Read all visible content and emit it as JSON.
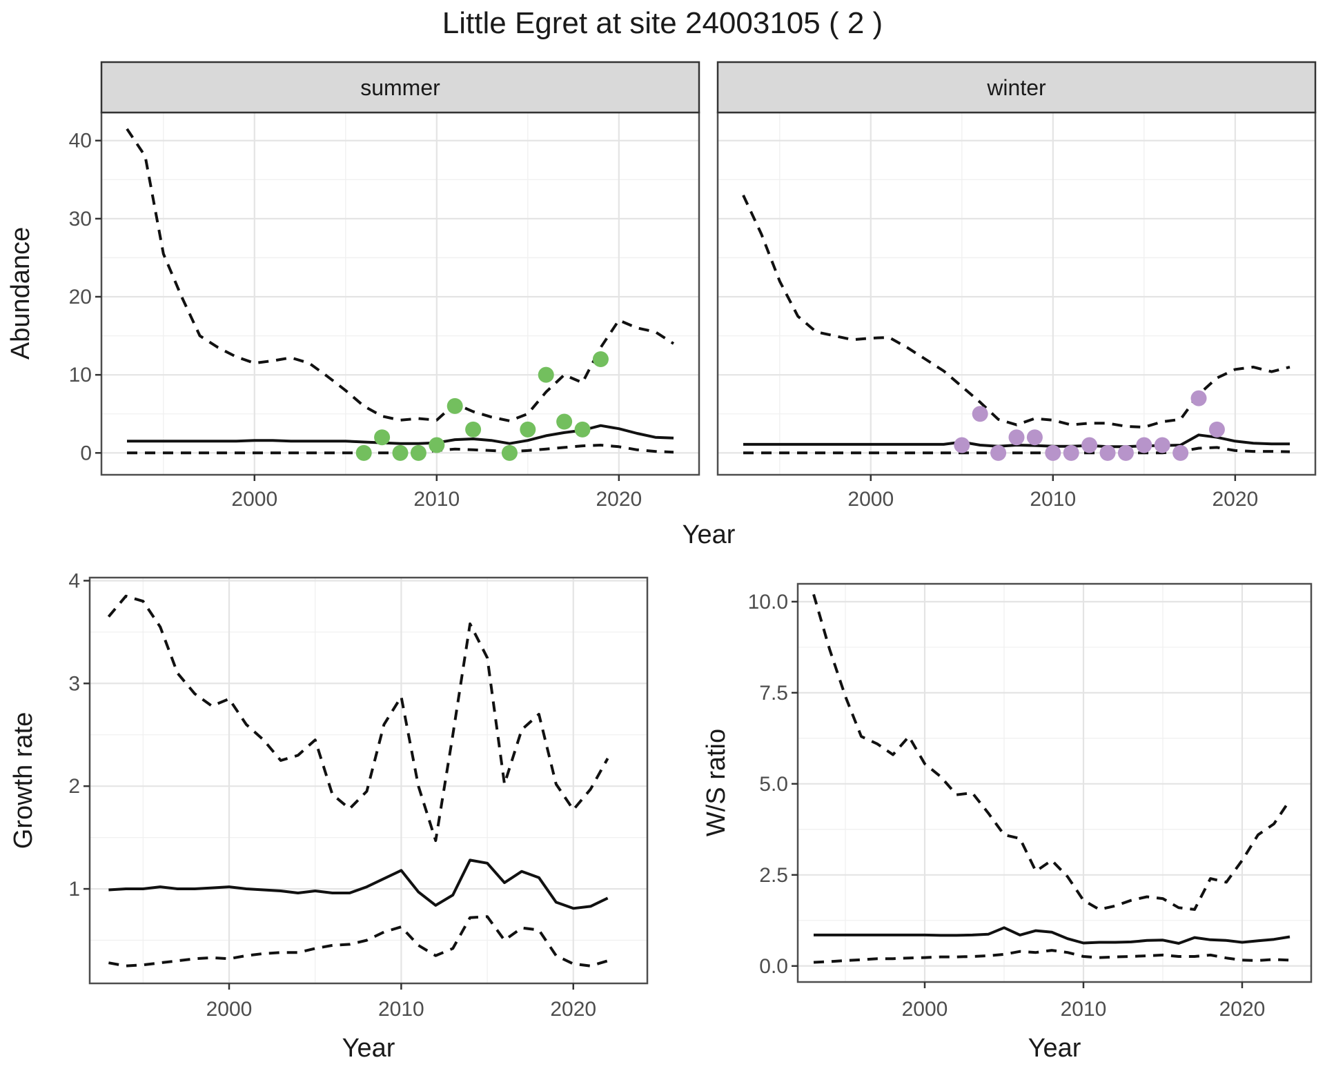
{
  "title": "Little Egret at site 24003105 ( 2 )",
  "colors": {
    "summer_points": "#73bf5e",
    "winter_points": "#b794ca",
    "line": "#111111",
    "strip_background": "#d9d9d9",
    "panel_border": "#4d4d4d",
    "grid_major": "#e4e4e4",
    "grid_minor": "#f0f0f0",
    "tick_mark": "#333333",
    "tick_text": "#4d4d4d"
  },
  "chart_data": [
    {
      "id": "abundance-summer",
      "type": "line",
      "facet_label": "summer",
      "xlabel": "Year",
      "ylabel": "Abundance",
      "xlim": [
        1991.6,
        2024.4
      ],
      "ylim": [
        -2.8,
        43.6
      ],
      "x_ticks": [
        2000,
        2010,
        2020
      ],
      "x_tick_labels": [
        "2000",
        "2010",
        "2020"
      ],
      "x_minor_ticks": [
        1995,
        2005,
        2015
      ],
      "y_ticks": [
        0,
        10,
        20,
        30,
        40
      ],
      "y_tick_labels": [
        "0",
        "10",
        "20",
        "30",
        "40"
      ],
      "y_minor_ticks": [
        5,
        15,
        25,
        35
      ],
      "show_y_axis": true,
      "x": [
        1993,
        1994,
        1995,
        1996,
        1997,
        1998,
        1999,
        2000,
        2001,
        2002,
        2003,
        2004,
        2005,
        2006,
        2007,
        2008,
        2009,
        2010,
        2011,
        2012,
        2013,
        2014,
        2015,
        2016,
        2017,
        2018,
        2019,
        2020,
        2021,
        2022,
        2023
      ],
      "series": [
        {
          "name": "upper CI",
          "style": "dashed",
          "values": [
            41.5,
            38,
            25.5,
            20,
            15,
            13.5,
            12.3,
            11.5,
            11.8,
            12.2,
            11.5,
            9.8,
            8,
            6,
            4.7,
            4.2,
            4.4,
            4.2,
            6.3,
            5.3,
            4.6,
            4.1,
            5,
            7.8,
            10,
            9,
            13.5,
            17,
            16,
            15.5,
            14
          ]
        },
        {
          "name": "median",
          "style": "solid",
          "values": [
            1.5,
            1.5,
            1.5,
            1.5,
            1.5,
            1.5,
            1.5,
            1.6,
            1.6,
            1.5,
            1.5,
            1.5,
            1.5,
            1.4,
            1.3,
            1.2,
            1.2,
            1.3,
            1.7,
            1.8,
            1.6,
            1.2,
            1.6,
            2.2,
            2.6,
            2.9,
            3.5,
            3.1,
            2.5,
            2.0,
            1.9
          ]
        },
        {
          "name": "lower CI",
          "style": "dashed",
          "values": [
            0,
            0,
            0,
            0,
            0,
            0,
            0,
            0,
            0,
            0,
            0,
            0,
            0,
            0,
            0,
            0,
            0,
            0.3,
            0.5,
            0.4,
            0.3,
            0.2,
            0.3,
            0.5,
            0.7,
            0.9,
            1.0,
            0.8,
            0.4,
            0.2,
            0.1
          ]
        }
      ],
      "points": {
        "name": "observed summer counts",
        "color": "#73bf5e",
        "x": [
          2006,
          2007,
          2008,
          2009,
          2010,
          2011,
          2012,
          2014,
          2015,
          2016,
          2017,
          2018,
          2019
        ],
        "y": [
          0,
          2,
          0,
          0,
          1,
          6,
          3,
          0,
          3,
          10,
          4,
          3,
          12
        ]
      }
    },
    {
      "id": "abundance-winter",
      "type": "line",
      "facet_label": "winter",
      "xlabel": "Year",
      "ylabel": "Abundance",
      "xlim": [
        1991.6,
        2024.4
      ],
      "ylim": [
        -2.8,
        43.6
      ],
      "x_ticks": [
        2000,
        2010,
        2020
      ],
      "x_tick_labels": [
        "2000",
        "2010",
        "2020"
      ],
      "x_minor_ticks": [
        1995,
        2005,
        2015
      ],
      "y_ticks": [
        0,
        10,
        20,
        30,
        40
      ],
      "y_tick_labels": [
        "0",
        "10",
        "20",
        "30",
        "40"
      ],
      "y_minor_ticks": [
        5,
        15,
        25,
        35
      ],
      "show_y_axis": false,
      "x": [
        1993,
        1994,
        1995,
        1996,
        1997,
        1998,
        1999,
        2000,
        2001,
        2002,
        2003,
        2004,
        2005,
        2006,
        2007,
        2008,
        2009,
        2010,
        2011,
        2012,
        2013,
        2014,
        2015,
        2016,
        2017,
        2018,
        2019,
        2020,
        2021,
        2022,
        2023
      ],
      "series": [
        {
          "name": "upper CI",
          "style": "dashed",
          "values": [
            33,
            28,
            22,
            17.5,
            15.5,
            15,
            14.5,
            14.7,
            14.8,
            13.5,
            12,
            10.5,
            8.5,
            6.5,
            4.3,
            3.6,
            4.4,
            4.2,
            3.6,
            3.8,
            3.8,
            3.4,
            3.3,
            4.0,
            4.3,
            7.5,
            9.6,
            10.7,
            11.0,
            10.4,
            11.0
          ]
        },
        {
          "name": "median",
          "style": "solid",
          "values": [
            1.1,
            1.1,
            1.1,
            1.1,
            1.1,
            1.1,
            1.1,
            1.1,
            1.1,
            1.1,
            1.1,
            1.1,
            1.4,
            1.0,
            0.85,
            1.0,
            0.95,
            0.85,
            0.85,
            0.95,
            0.8,
            0.8,
            0.9,
            0.95,
            1.0,
            2.3,
            2.0,
            1.5,
            1.25,
            1.15,
            1.15
          ]
        },
        {
          "name": "lower CI",
          "style": "dashed",
          "values": [
            0,
            0,
            0,
            0,
            0,
            0,
            0,
            0,
            0,
            0,
            0,
            0,
            0,
            0,
            0,
            0,
            0,
            0,
            0,
            0,
            0,
            0,
            0,
            0,
            0.2,
            0.6,
            0.7,
            0.3,
            0.2,
            0.2,
            0.15
          ]
        }
      ],
      "points": {
        "name": "observed winter counts",
        "color": "#b794ca",
        "x": [
          2005,
          2006,
          2007,
          2008,
          2009,
          2010,
          2011,
          2012,
          2013,
          2014,
          2015,
          2016,
          2017,
          2018,
          2019
        ],
        "y": [
          1,
          5,
          0,
          2,
          2,
          0,
          0,
          1,
          0,
          0,
          1,
          1,
          0,
          7,
          3
        ]
      }
    },
    {
      "id": "growth-rate",
      "type": "line",
      "facet_label": "",
      "xlabel": "Year",
      "ylabel": "Growth rate",
      "xlim": [
        1991.9,
        2024.3
      ],
      "ylim": [
        0.08,
        4.03
      ],
      "x_ticks": [
        2000,
        2010,
        2020
      ],
      "x_tick_labels": [
        "2000",
        "2010",
        "2020"
      ],
      "x_minor_ticks": [
        1995,
        2005,
        2015
      ],
      "y_ticks": [
        1,
        2,
        3,
        4
      ],
      "y_tick_labels": [
        "1",
        "2",
        "3",
        "4"
      ],
      "y_minor_ticks": [
        0.5,
        1.5,
        2.5,
        3.5
      ],
      "show_y_axis": true,
      "x": [
        1993,
        1994,
        1995,
        1996,
        1997,
        1998,
        1999,
        2000,
        2001,
        2002,
        2003,
        2004,
        2005,
        2006,
        2007,
        2008,
        2009,
        2010,
        2011,
        2012,
        2013,
        2014,
        2015,
        2016,
        2017,
        2018,
        2019,
        2020,
        2021,
        2022
      ],
      "series": [
        {
          "name": "upper CI",
          "style": "dashed",
          "values": [
            3.65,
            3.85,
            3.8,
            3.55,
            3.1,
            2.9,
            2.78,
            2.85,
            2.6,
            2.45,
            2.25,
            2.3,
            2.45,
            1.92,
            1.78,
            1.95,
            2.6,
            2.87,
            2.0,
            1.47,
            2.5,
            3.58,
            3.25,
            2.02,
            2.55,
            2.7,
            2.02,
            1.77,
            1.97,
            2.27
          ]
        },
        {
          "name": "median",
          "style": "solid",
          "values": [
            0.99,
            1.0,
            1.0,
            1.02,
            1.0,
            1.0,
            1.01,
            1.02,
            1.0,
            0.99,
            0.98,
            0.96,
            0.98,
            0.96,
            0.96,
            1.02,
            1.1,
            1.18,
            0.97,
            0.84,
            0.94,
            1.28,
            1.25,
            1.06,
            1.17,
            1.11,
            0.87,
            0.81,
            0.83,
            0.91
          ]
        },
        {
          "name": "lower CI",
          "style": "dashed",
          "values": [
            0.28,
            0.25,
            0.26,
            0.28,
            0.3,
            0.32,
            0.33,
            0.32,
            0.35,
            0.37,
            0.38,
            0.38,
            0.42,
            0.45,
            0.46,
            0.5,
            0.58,
            0.63,
            0.45,
            0.35,
            0.42,
            0.72,
            0.73,
            0.5,
            0.62,
            0.6,
            0.35,
            0.27,
            0.25,
            0.3
          ]
        }
      ],
      "points": null
    },
    {
      "id": "ws-ratio",
      "type": "line",
      "facet_label": "",
      "xlabel": "Year",
      "ylabel": "W/S ratio",
      "xlim": [
        1992.0,
        2024.35
      ],
      "ylim": [
        -0.44,
        10.49
      ],
      "x_ticks": [
        2000,
        2010,
        2020
      ],
      "x_tick_labels": [
        "2000",
        "2010",
        "2020"
      ],
      "x_minor_ticks": [
        1995,
        2005,
        2015
      ],
      "y_ticks": [
        0,
        2.5,
        5,
        7.5,
        10
      ],
      "y_tick_labels": [
        "0.0",
        "2.5",
        "5.0",
        "7.5",
        "10.0"
      ],
      "y_minor_ticks": [
        1.25,
        3.75,
        6.25,
        8.75
      ],
      "show_y_axis": true,
      "x": [
        1993,
        1994,
        1995,
        1996,
        1997,
        1998,
        1999,
        2000,
        2001,
        2002,
        2003,
        2004,
        2005,
        2006,
        2007,
        2008,
        2009,
        2010,
        2011,
        2012,
        2013,
        2014,
        2015,
        2016,
        2017,
        2018,
        2019,
        2020,
        2021,
        2022,
        2023
      ],
      "series": [
        {
          "name": "upper CI",
          "style": "dashed",
          "values": [
            10.2,
            8.7,
            7.4,
            6.3,
            6.1,
            5.8,
            6.3,
            5.55,
            5.2,
            4.7,
            4.75,
            4.2,
            3.6,
            3.5,
            2.6,
            2.9,
            2.45,
            1.8,
            1.55,
            1.65,
            1.8,
            1.9,
            1.85,
            1.6,
            1.55,
            2.4,
            2.3,
            2.9,
            3.6,
            3.9,
            4.55
          ]
        },
        {
          "name": "median",
          "style": "solid",
          "values": [
            0.85,
            0.85,
            0.85,
            0.85,
            0.85,
            0.85,
            0.85,
            0.85,
            0.84,
            0.84,
            0.85,
            0.87,
            1.05,
            0.85,
            0.97,
            0.93,
            0.75,
            0.63,
            0.65,
            0.65,
            0.66,
            0.7,
            0.71,
            0.62,
            0.78,
            0.72,
            0.7,
            0.65,
            0.69,
            0.73,
            0.8
          ]
        },
        {
          "name": "lower CI",
          "style": "dashed",
          "values": [
            0.1,
            0.12,
            0.15,
            0.17,
            0.2,
            0.2,
            0.22,
            0.23,
            0.25,
            0.25,
            0.26,
            0.28,
            0.32,
            0.4,
            0.37,
            0.43,
            0.37,
            0.26,
            0.23,
            0.25,
            0.26,
            0.28,
            0.3,
            0.26,
            0.26,
            0.3,
            0.22,
            0.16,
            0.15,
            0.18,
            0.16
          ]
        }
      ],
      "points": null
    }
  ]
}
